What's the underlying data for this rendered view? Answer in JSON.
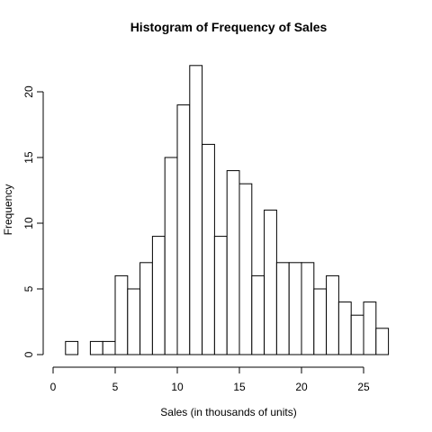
{
  "chart_data": {
    "type": "bar",
    "title": "Histogram of Frequency of Sales",
    "xlabel": "Sales (in thousands of units)",
    "ylabel": "Frequency",
    "bin_width": 1,
    "bins": [
      {
        "start": 1,
        "end": 2,
        "count": 1
      },
      {
        "start": 2,
        "end": 3,
        "count": 0
      },
      {
        "start": 3,
        "end": 4,
        "count": 1
      },
      {
        "start": 4,
        "end": 5,
        "count": 1
      },
      {
        "start": 5,
        "end": 6,
        "count": 6
      },
      {
        "start": 6,
        "end": 7,
        "count": 5
      },
      {
        "start": 7,
        "end": 8,
        "count": 7
      },
      {
        "start": 8,
        "end": 9,
        "count": 9
      },
      {
        "start": 9,
        "end": 10,
        "count": 15
      },
      {
        "start": 10,
        "end": 11,
        "count": 19
      },
      {
        "start": 11,
        "end": 12,
        "count": 22
      },
      {
        "start": 12,
        "end": 13,
        "count": 16
      },
      {
        "start": 13,
        "end": 14,
        "count": 9
      },
      {
        "start": 14,
        "end": 15,
        "count": 14
      },
      {
        "start": 15,
        "end": 16,
        "count": 13
      },
      {
        "start": 16,
        "end": 17,
        "count": 6
      },
      {
        "start": 17,
        "end": 18,
        "count": 11
      },
      {
        "start": 18,
        "end": 19,
        "count": 7
      },
      {
        "start": 19,
        "end": 20,
        "count": 7
      },
      {
        "start": 20,
        "end": 21,
        "count": 7
      },
      {
        "start": 21,
        "end": 22,
        "count": 5
      },
      {
        "start": 22,
        "end": 23,
        "count": 6
      },
      {
        "start": 23,
        "end": 24,
        "count": 4
      },
      {
        "start": 24,
        "end": 25,
        "count": 3
      },
      {
        "start": 25,
        "end": 26,
        "count": 4
      },
      {
        "start": 26,
        "end": 27,
        "count": 2
      }
    ],
    "x_ticks": [
      0,
      5,
      10,
      15,
      20,
      25
    ],
    "y_ticks": [
      0,
      5,
      10,
      15,
      20
    ],
    "xlim": [
      0,
      27
    ],
    "ylim": [
      0,
      22
    ],
    "grid": false,
    "bar_fill": "#ffffff",
    "bar_stroke": "#000000"
  }
}
